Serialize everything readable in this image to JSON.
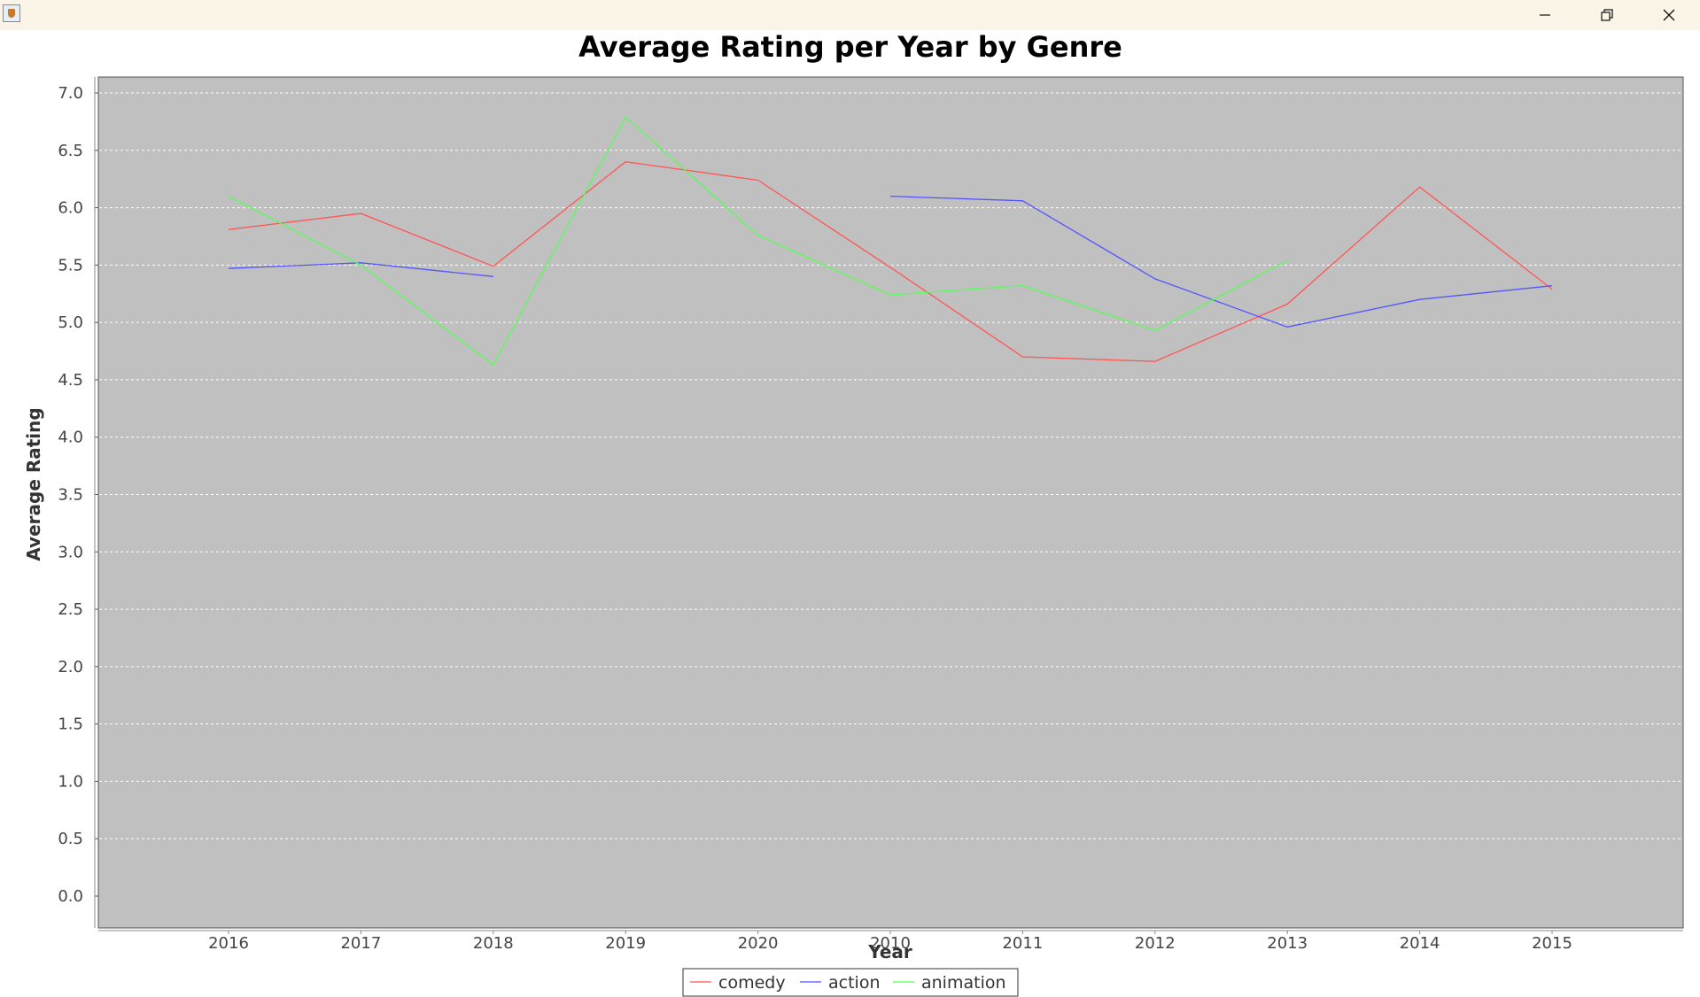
{
  "window": {
    "icon": "java-cup-icon",
    "controls": [
      "minimize-icon",
      "restore-icon",
      "close-icon"
    ]
  },
  "chart_data": {
    "type": "line",
    "title": "Average Rating per Year by Genre",
    "xlabel": "Year",
    "ylabel": "Average Rating",
    "categories": [
      "2016",
      "2017",
      "2018",
      "2019",
      "2020",
      "2010",
      "2011",
      "2012",
      "2013",
      "2014",
      "2015"
    ],
    "ylim": [
      0,
      7.0
    ],
    "yticks": [
      "0.0",
      "0.5",
      "1.0",
      "1.5",
      "2.0",
      "2.5",
      "3.0",
      "3.5",
      "4.0",
      "4.5",
      "5.0",
      "5.5",
      "6.0",
      "6.5",
      "7.0"
    ],
    "grid": true,
    "legend_position": "bottom",
    "series": [
      {
        "name": "comedy",
        "color": "#ff5555",
        "values": [
          5.81,
          5.95,
          5.49,
          6.4,
          6.24,
          5.48,
          4.7,
          4.66,
          5.16,
          6.18,
          5.29
        ]
      },
      {
        "name": "action",
        "color": "#5555ff",
        "values": [
          5.47,
          5.52,
          5.4,
          null,
          null,
          6.1,
          6.06,
          5.38,
          4.96,
          5.2,
          5.32
        ]
      },
      {
        "name": "animation",
        "color": "#55ff55",
        "values": [
          6.1,
          5.5,
          4.63,
          6.79,
          5.76,
          5.24,
          5.32,
          4.93,
          5.54,
          null,
          null
        ]
      }
    ]
  }
}
